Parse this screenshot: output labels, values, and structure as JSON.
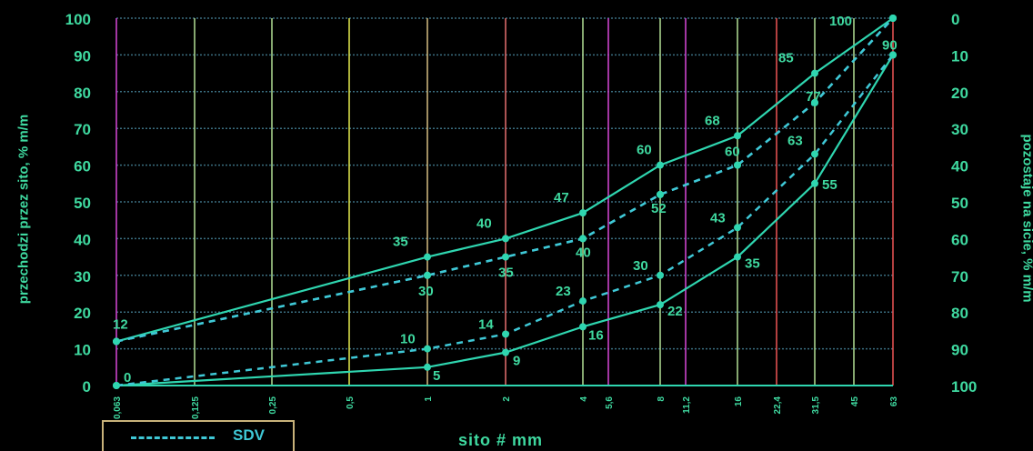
{
  "chart_data": {
    "type": "line",
    "x_ticks": [
      "0,063",
      "0,125",
      "0,25",
      "0,5",
      "1",
      "2",
      "4",
      "5,6",
      "8",
      "11,2",
      "16",
      "22,4",
      "31,5",
      "45",
      "63"
    ],
    "xlabel": "sito # mm",
    "ylabel_left": "przechodzi przez sito, % m/m",
    "ylabel_right": "pozostaje na sicie, % m/m",
    "ylim": [
      0,
      100
    ],
    "y_left_ticks": [
      "0",
      "10",
      "20",
      "30",
      "40",
      "50",
      "60",
      "70",
      "80",
      "90",
      "100"
    ],
    "y_right_ticks": [
      "100",
      "90",
      "80",
      "70",
      "60",
      "50",
      "40",
      "30",
      "20",
      "10",
      "0"
    ],
    "series": [
      {
        "name": "",
        "style": "solid",
        "x": [
          "0,063",
          "1",
          "2",
          "4",
          "8",
          "16",
          "31,5",
          "63"
        ],
        "values": [
          12,
          35,
          40,
          47,
          60,
          68,
          85,
          100
        ],
        "labels": [
          "12",
          "35",
          "40",
          "47",
          "60",
          "68",
          "85",
          "100"
        ]
      },
      {
        "name": "",
        "style": "solid",
        "x": [
          "0,063",
          "1",
          "2",
          "4",
          "8",
          "16",
          "31,5",
          "63"
        ],
        "values": [
          0,
          5,
          9,
          16,
          22,
          35,
          55,
          90
        ],
        "labels": [
          "0",
          "5",
          "9",
          "16",
          "22",
          "35",
          "55",
          "90"
        ]
      },
      {
        "name": "SDV",
        "style": "dashed",
        "x": [
          "0,063",
          "1",
          "4",
          "8",
          "16",
          "31,5",
          "63"
        ],
        "values": [
          12,
          30,
          40,
          52,
          60,
          77,
          100
        ],
        "labels": [
          "",
          "30",
          "40",
          "52",
          "60",
          "77",
          ""
        ]
      },
      {
        "name": "SDV",
        "style": "dashed",
        "x": [
          "0,063",
          "1",
          "2",
          "4",
          "8",
          "16",
          "31,5",
          "63"
        ],
        "values": [
          0,
          10,
          14,
          23,
          30,
          43,
          63,
          90
        ],
        "labels": [
          "",
          "10",
          "14",
          "23",
          "30",
          "43",
          "63",
          ""
        ]
      },
      {
        "name": "",
        "style": "dashed",
        "x": [
          "0,063",
          "1",
          "2",
          "4",
          "8",
          "16",
          "31,5",
          "63"
        ],
        "values": [
          12,
          30,
          35,
          40,
          52,
          60,
          77,
          100
        ],
        "labels": [
          "",
          "",
          "35",
          "",
          "",
          "",
          "",
          ""
        ]
      }
    ],
    "grid": true,
    "legend": {
      "position": "bottom-left",
      "entries": [
        "SDV"
      ]
    },
    "colors": {
      "background": "#000000",
      "line": "#2fd6b0",
      "dashed": "#3fc8d6",
      "text": "#3fd9a0",
      "grid_dotted": "#3a6e80",
      "vlines": [
        "#cc44cc",
        "#a8d28c",
        "#a8d28c",
        "#d9e04a",
        "#c8b27a",
        "#d86a6a",
        "#a8d28c",
        "#cc44cc",
        "#a8d28c",
        "#cc44cc",
        "#a8d28c",
        "#e05050",
        "#a8d28c",
        "#a8d28c",
        "#e05050"
      ]
    }
  }
}
